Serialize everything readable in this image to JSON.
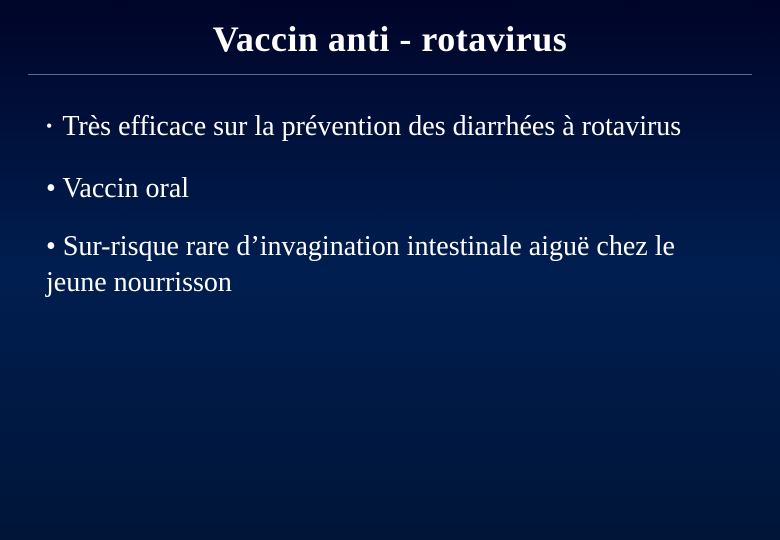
{
  "slide": {
    "title": "Vaccin anti - rotavirus",
    "title_color": "#ffffff",
    "title_fontsize": 36,
    "background_gradient": [
      "#000428",
      "#001e50",
      "#001538"
    ],
    "body_fontsize": 28,
    "body_color": "#ffffff",
    "rule_color": "#5a6b90",
    "font_family": "Times New Roman",
    "bullets": [
      {
        "marker": "•",
        "text": "Très efficace sur la prévention des diarrhées à rotavirus"
      },
      {
        "marker": "•",
        "text": "Vaccin oral"
      },
      {
        "marker": "•",
        "text": "Sur-risque rare d’invagination intestinale aiguë chez le jeune nourrisson"
      }
    ]
  }
}
